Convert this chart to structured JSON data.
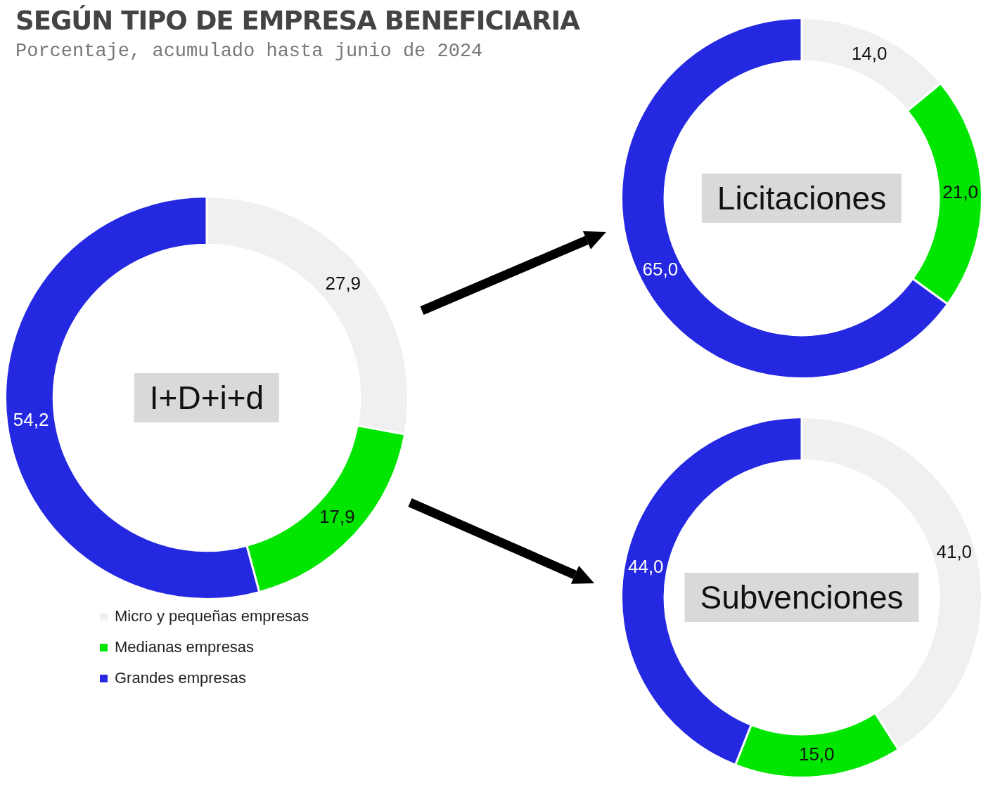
{
  "chart_data": [
    {
      "type": "donut",
      "title": "SEGÚN TIPO DE EMPRESA BENEFICIARIA",
      "subtitle": "Porcentaje, acumulado hasta junio de 2024",
      "annotations": [
        "I+D+i+d"
      ],
      "categories": [
        "Micro y pequeñas empresas",
        "Medianas empresas",
        "Grandes empresas"
      ],
      "values": [
        27.9,
        17.9,
        54.2
      ],
      "value_labels": [
        "27,9",
        "17,9",
        "54,2"
      ],
      "colors": [
        "#f0f0f0",
        "#00e600",
        "#2428e0"
      ],
      "legend": "bottom left"
    },
    {
      "type": "donut",
      "annotations": [
        "Licitaciones"
      ],
      "categories": [
        null,
        null,
        null
      ],
      "values": [
        14,
        21,
        65
      ],
      "value_labels": [
        "14,0",
        "21,0",
        "65,0"
      ],
      "colors": [
        "#f0f0f0",
        "#00e600",
        "#2428e0"
      ]
    },
    {
      "type": "donut",
      "annotations": [
        "Subvenciones"
      ],
      "categories": [
        null,
        null,
        null
      ],
      "values": [
        41,
        15,
        44
      ],
      "value_labels": [
        "41,0",
        "15,0",
        "44,0"
      ],
      "colors": [
        "#f0f0f0",
        "#00e600",
        "#2428e0"
      ]
    }
  ]
}
